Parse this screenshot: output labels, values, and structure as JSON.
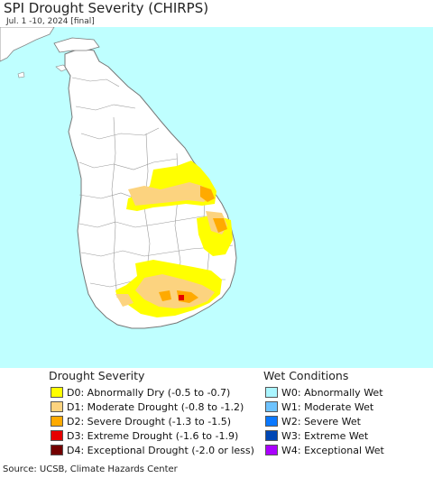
{
  "header": {
    "title": "SPI Drought Severity (CHIRPS)",
    "subtitle": "Jul. 1 -10, 2024 [final]"
  },
  "map": {
    "ocean_color": "#bfffff",
    "land_color": "#ffffff",
    "border_color": "#888888",
    "region": "Sri Lanka"
  },
  "legend": {
    "drought_title": "Drought Severity",
    "drought_items": [
      {
        "label": "D0: Abnormally Dry (-0.5 to -0.7)",
        "color": "#ffff00"
      },
      {
        "label": "D1: Moderate Drought (-0.8 to -1.2)",
        "color": "#fcd37f"
      },
      {
        "label": "D2: Severe Drought (-1.3 to -1.5)",
        "color": "#ffaa00"
      },
      {
        "label": "D3: Extreme Drought (-1.6 to -1.9)",
        "color": "#e60000"
      },
      {
        "label": "D4: Exceptional Drought (-2.0 or less)",
        "color": "#730000"
      }
    ],
    "wet_title": "Wet Conditions",
    "wet_items": [
      {
        "label": "W0: Abnormally Wet",
        "color": "#aaf5ff"
      },
      {
        "label": "W1: Moderate Wet",
        "color": "#6ec3ff"
      },
      {
        "label": "W2: Severe Wet",
        "color": "#0a78ff"
      },
      {
        "label": "W3: Extreme Wet",
        "color": "#0046b4"
      },
      {
        "label": "W4: Exceptional Wet",
        "color": "#aa00ff"
      }
    ]
  },
  "footer": {
    "source": "Source: UCSB, Climate Hazards Center"
  }
}
